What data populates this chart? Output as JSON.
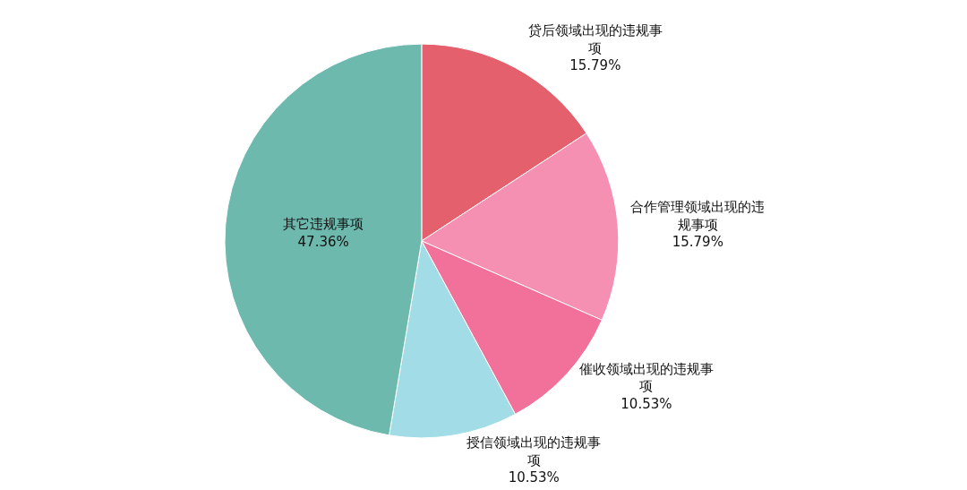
{
  "chart_data": {
    "type": "pie",
    "categories": [
      "贷后领域出现的违规事项",
      "合作管理领域出现的违规事项",
      "催收领域出现的违规事项",
      "授信领域出现的违规事项",
      "其它违规事项"
    ],
    "values": [
      15.79,
      15.79,
      10.53,
      10.53,
      47.36
    ],
    "colors": [
      "#e4606d",
      "#f590b2",
      "#f2719b",
      "#a2dce6",
      "#6db9ae"
    ],
    "value_labels": [
      "15.79%",
      "15.79%",
      "10.53%",
      "10.53%",
      "47.36%"
    ]
  }
}
